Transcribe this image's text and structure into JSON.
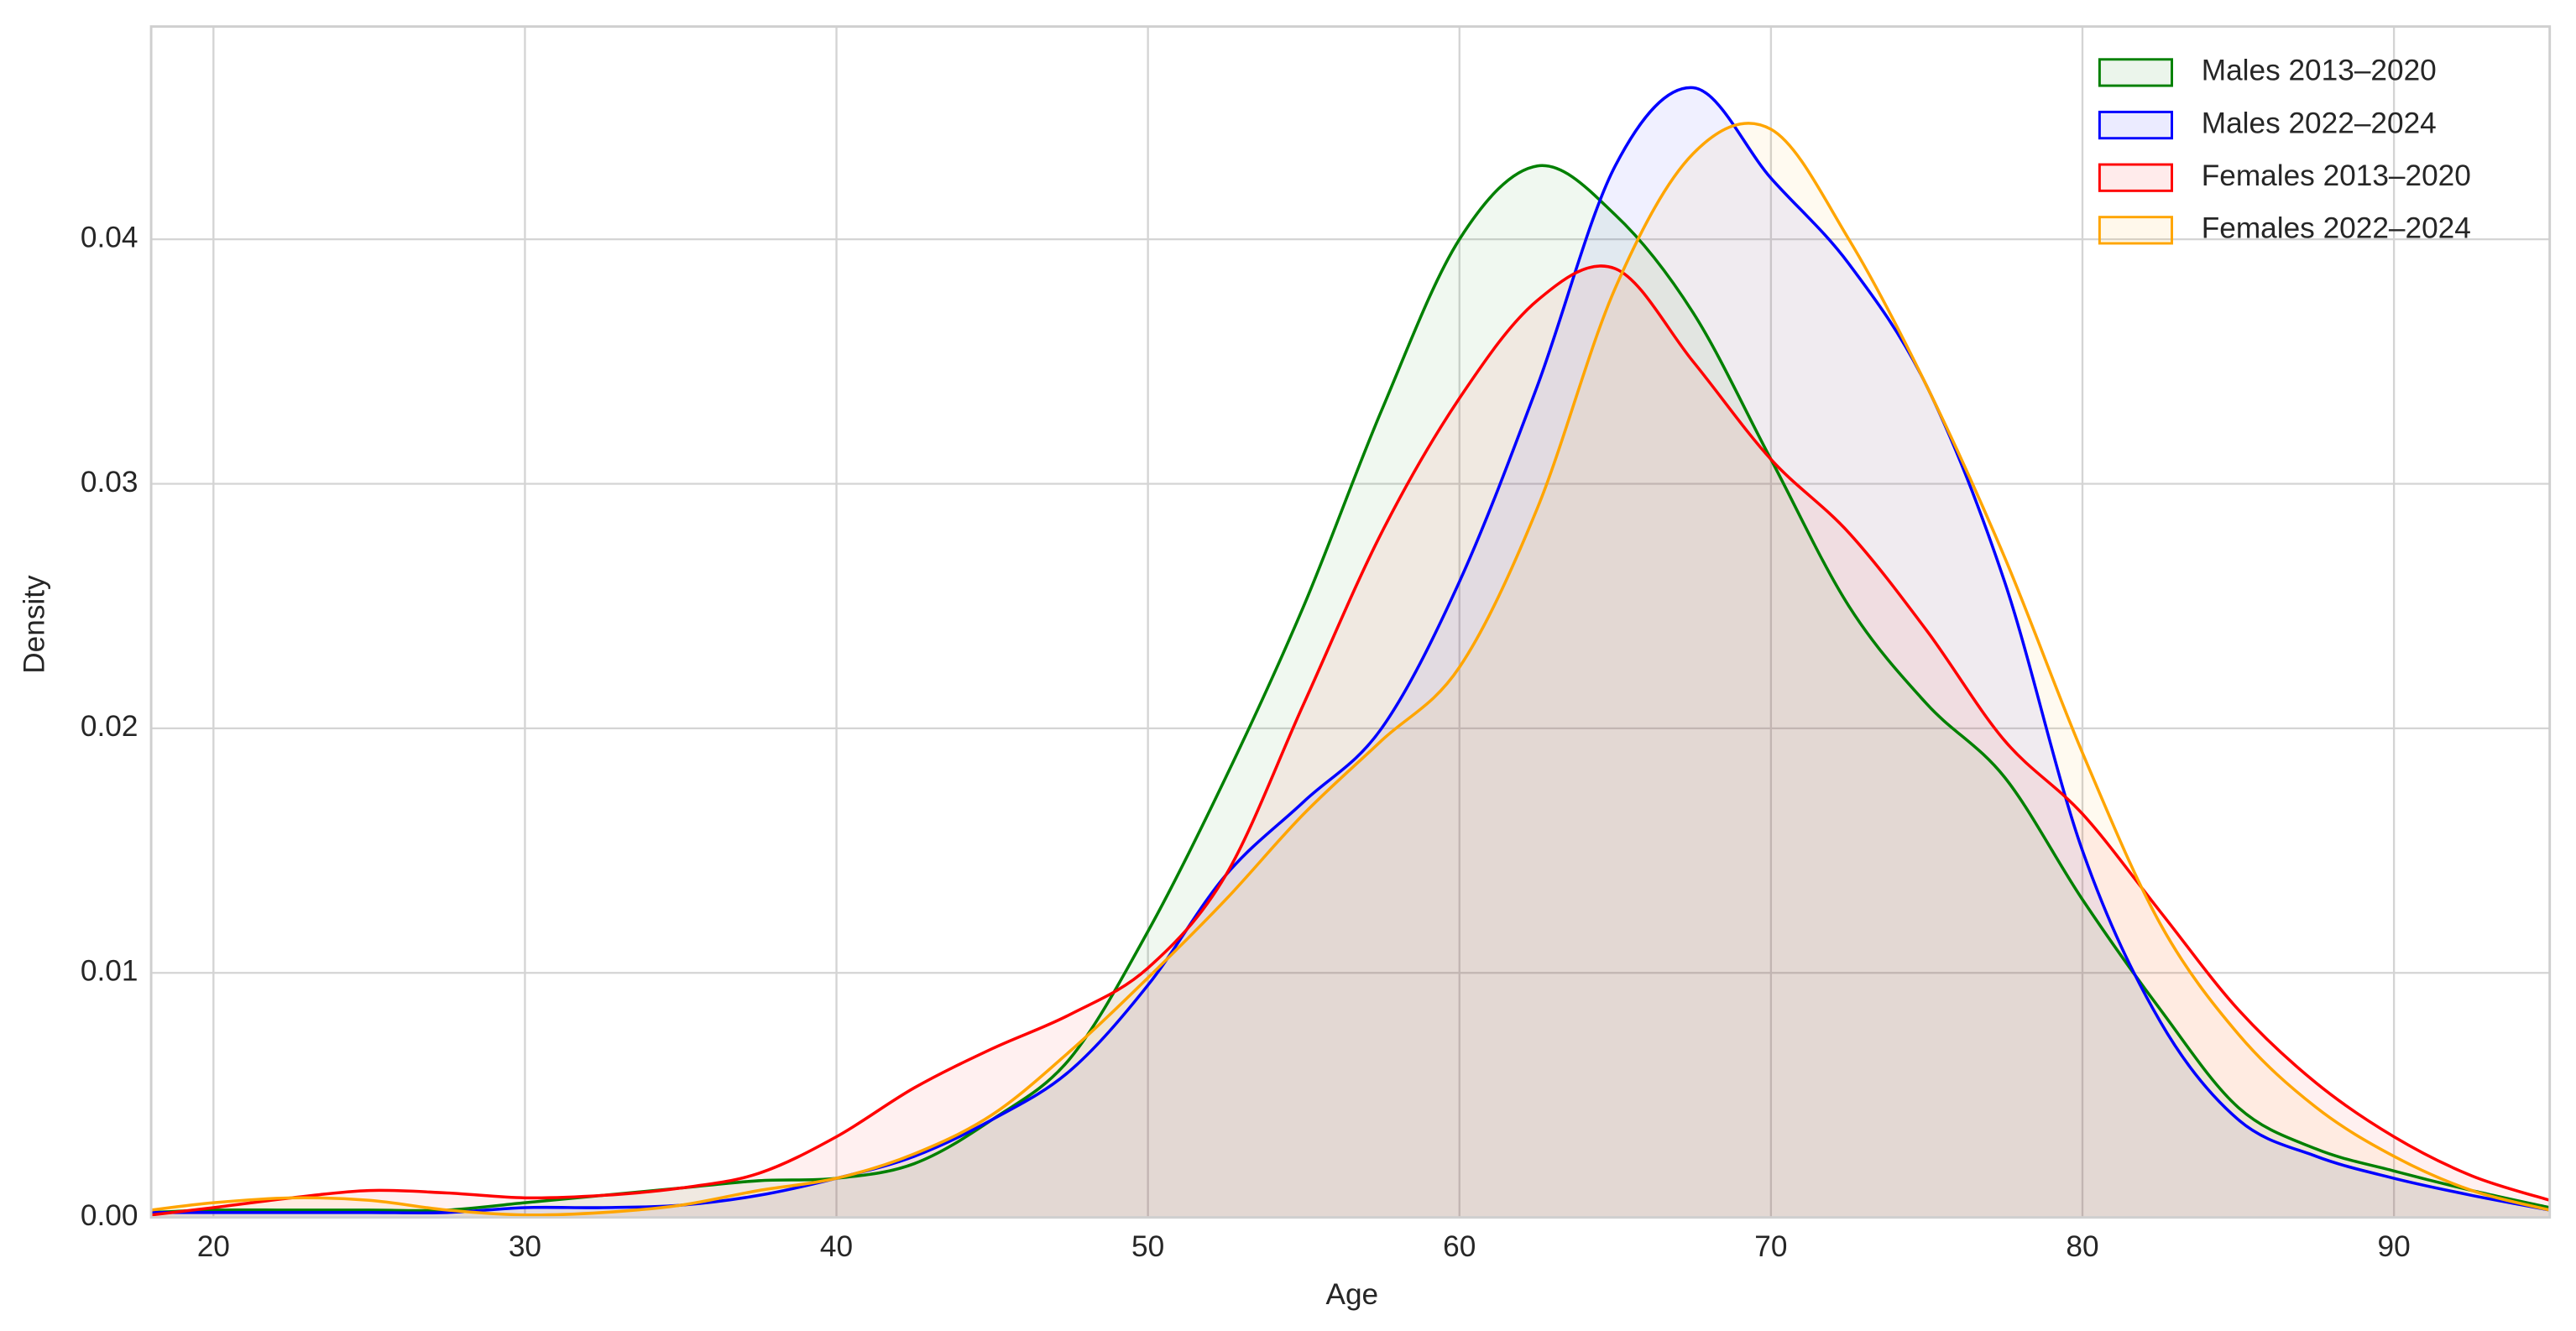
{
  "chart_data": {
    "type": "kde",
    "xlabel": "Age",
    "ylabel": "Density",
    "x": [
      18,
      20,
      22.5,
      25,
      27.5,
      30,
      32.5,
      35,
      37.5,
      40,
      42.5,
      45,
      47.5,
      50,
      52.5,
      55,
      57.5,
      60,
      62.5,
      65,
      67.5,
      70,
      72.5,
      75,
      77.5,
      80,
      82.5,
      85,
      87.5,
      90,
      92.5,
      95
    ],
    "series": [
      {
        "name": "Males 2013–2020",
        "color": "green",
        "values": [
          0.0002,
          0.0003,
          0.0003,
          0.0003,
          0.0003,
          0.0006,
          0.0009,
          0.0012,
          0.0015,
          0.0016,
          0.0022,
          0.004,
          0.0065,
          0.0117,
          0.018,
          0.025,
          0.033,
          0.04,
          0.043,
          0.041,
          0.037,
          0.031,
          0.025,
          0.021,
          0.018,
          0.013,
          0.0085,
          0.0045,
          0.0028,
          0.0019,
          0.0011,
          0.0004
        ]
      },
      {
        "name": "Males 2022–2024",
        "color": "blue",
        "values": [
          0.0002,
          0.0002,
          0.0002,
          0.0002,
          0.0002,
          0.0004,
          0.0004,
          0.0005,
          0.0009,
          0.0016,
          0.0025,
          0.004,
          0.006,
          0.0095,
          0.014,
          0.017,
          0.02,
          0.026,
          0.034,
          0.043,
          0.0462,
          0.0425,
          0.039,
          0.034,
          0.026,
          0.015,
          0.008,
          0.004,
          0.0025,
          0.0016,
          0.0009,
          0.0003
        ]
      },
      {
        "name": "Females 2013–2020",
        "color": "red",
        "values": [
          0.0001,
          0.0004,
          0.0008,
          0.0011,
          0.001,
          0.0008,
          0.0009,
          0.0012,
          0.0018,
          0.0033,
          0.0053,
          0.0069,
          0.0083,
          0.0102,
          0.014,
          0.021,
          0.028,
          0.0335,
          0.0375,
          0.0388,
          0.035,
          0.031,
          0.028,
          0.024,
          0.0195,
          0.0165,
          0.0125,
          0.0085,
          0.0055,
          0.0033,
          0.0017,
          0.0007
        ]
      },
      {
        "name": "Females 2022–2024",
        "color": "orange",
        "values": [
          0.0003,
          0.0006,
          0.0008,
          0.0007,
          0.0003,
          0.0001,
          0.0002,
          0.0005,
          0.0011,
          0.0016,
          0.0026,
          0.0042,
          0.0068,
          0.0098,
          0.013,
          0.0165,
          0.0195,
          0.0225,
          0.029,
          0.038,
          0.0435,
          0.0445,
          0.04,
          0.034,
          0.027,
          0.019,
          0.012,
          0.0075,
          0.0045,
          0.0025,
          0.0011,
          0.0003
        ]
      }
    ],
    "xlim": [
      18,
      95
    ],
    "ylim": [
      0,
      0.0487
    ],
    "xticks": [
      20,
      30,
      40,
      50,
      60,
      70,
      80,
      90
    ],
    "yticks": [
      {
        "value": 0,
        "label": "0.00"
      },
      0.01,
      0.02,
      0.03,
      0.04
    ],
    "grid": true,
    "legend": "upper right"
  }
}
